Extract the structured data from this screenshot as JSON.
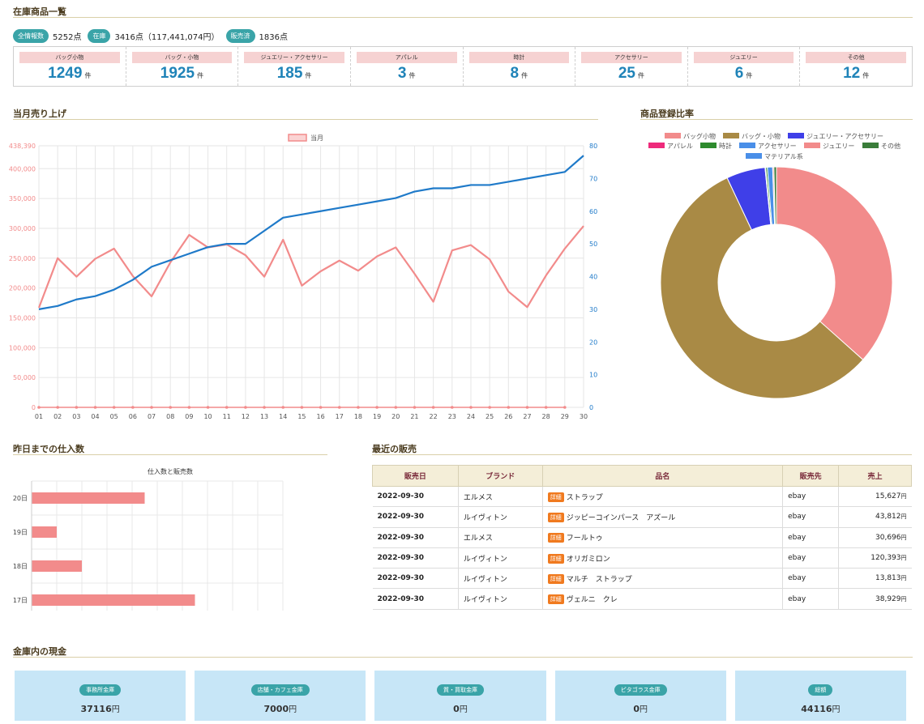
{
  "sections": {
    "inventory": "在庫商品一覧",
    "monthly_sales": "当月売り上げ",
    "registration_ratio": "商品登録比率",
    "purchases": "昨日までの仕入数",
    "recent_sales": "最近の販売",
    "cash": "金庫内の現金"
  },
  "summary": {
    "total_label": "全情報数",
    "total_value": "5252点",
    "stock_label": "在庫",
    "stock_value": "3416点（117,441,074円）",
    "sold_label": "販売済",
    "sold_value": "1836点"
  },
  "categories": [
    {
      "label": "バッグ小物",
      "count": "1249",
      "unit": "件"
    },
    {
      "label": "バッグ・小物",
      "count": "1925",
      "unit": "件"
    },
    {
      "label": "ジュエリー・アクセサリー",
      "count": "185",
      "unit": "件"
    },
    {
      "label": "アパレル",
      "count": "3",
      "unit": "件"
    },
    {
      "label": "時計",
      "count": "8",
      "unit": "件"
    },
    {
      "label": "アクセサリー",
      "count": "25",
      "unit": "件"
    },
    {
      "label": "ジュエリー",
      "count": "6",
      "unit": "件"
    },
    {
      "label": "その他",
      "count": "12",
      "unit": "件"
    }
  ],
  "colors": {
    "accent": "#3aa4a8",
    "sales_line": "#f28b8b",
    "count_line": "#1f7ac9",
    "title_text": "#4a3b1e"
  },
  "chart_data": [
    {
      "type": "line",
      "legend": "当月",
      "x": [
        "01",
        "02",
        "03",
        "04",
        "05",
        "06",
        "07",
        "08",
        "09",
        "10",
        "11",
        "12",
        "13",
        "14",
        "15",
        "16",
        "17",
        "18",
        "19",
        "20",
        "21",
        "22",
        "23",
        "24",
        "25",
        "26",
        "27",
        "28",
        "29",
        "30"
      ],
      "y_left_ticks": [
        "0",
        "50,000",
        "100,000",
        "150,000",
        "200,000",
        "250,000",
        "300,000",
        "350,000",
        "400,000",
        "438,390"
      ],
      "y_left_max": 438390,
      "y_right_ticks": [
        "0",
        "10",
        "20",
        "30",
        "40",
        "50",
        "60",
        "70",
        "80"
      ],
      "y_right_max": 80,
      "series": [
        {
          "name": "当月",
          "axis": "left",
          "values": [
            167000,
            250000,
            219000,
            249000,
            266000,
            220000,
            186000,
            243000,
            289000,
            268000,
            273000,
            255000,
            219000,
            281000,
            204000,
            228000,
            246000,
            229000,
            253000,
            268000,
            224000,
            177000,
            263000,
            272000,
            248000,
            194000,
            168000,
            221000,
            266000,
            304000
          ]
        },
        {
          "axis": "right",
          "values": [
            30,
            31,
            33,
            34,
            36,
            39,
            43,
            45,
            47,
            49,
            50,
            50,
            54,
            58,
            59,
            60,
            61,
            62,
            63,
            64,
            66,
            67,
            67,
            68,
            68,
            69,
            70,
            71,
            72,
            77
          ]
        }
      ],
      "zero_series_axis": "left"
    },
    {
      "type": "pie",
      "legend_position": "top",
      "labels": [
        "バッグ小物",
        "バッグ・小物",
        "ジュエリー・アクセサリー",
        "アパレル",
        "時計",
        "アクセサリー",
        "ジュエリー",
        "その他",
        "マテリアル系"
      ],
      "values": [
        1249,
        1925,
        185,
        3,
        8,
        25,
        6,
        12,
        0
      ],
      "colors": [
        "#f28b8b",
        "#a98a45",
        "#3f3fe8",
        "#ee2a7b",
        "#2e8b2e",
        "#4a8fe8",
        "#f28b8b",
        "#3a7d3a",
        "#4a8fe8"
      ]
    },
    {
      "type": "bar",
      "orientation": "horizontal",
      "title": "仕入数と販売数",
      "categories": [
        "20日",
        "19日",
        "18日",
        "17日"
      ],
      "values": [
        9,
        2,
        4,
        13
      ],
      "xlim": [
        0,
        20
      ]
    }
  ],
  "recent_sales": {
    "headers": [
      "販売日",
      "ブランド",
      "品名",
      "販売先",
      "売上"
    ],
    "badge": "詳細",
    "rows": [
      {
        "date": "2022-09-30",
        "brand": "エルメス",
        "item": "ストラップ",
        "dest": "ebay",
        "amount": "15,627",
        "unit": "円"
      },
      {
        "date": "2022-09-30",
        "brand": "ルイヴィトン",
        "item": "ジッピーコインパース　アズール",
        "dest": "ebay",
        "amount": "43,812",
        "unit": "円"
      },
      {
        "date": "2022-09-30",
        "brand": "エルメス",
        "item": "フールトゥ",
        "dest": "ebay",
        "amount": "30,696",
        "unit": "円"
      },
      {
        "date": "2022-09-30",
        "brand": "ルイヴィトン",
        "item": "オリガミロン",
        "dest": "ebay",
        "amount": "120,393",
        "unit": "円"
      },
      {
        "date": "2022-09-30",
        "brand": "ルイヴィトン",
        "item": "マルチ　ストラップ",
        "dest": "ebay",
        "amount": "13,813",
        "unit": "円"
      },
      {
        "date": "2022-09-30",
        "brand": "ルイヴィトン",
        "item": "ヴェルニ　クレ",
        "dest": "ebay",
        "amount": "38,929",
        "unit": "円"
      }
    ]
  },
  "safes": [
    {
      "label": "事務所金庫",
      "value": "37116",
      "unit": "円"
    },
    {
      "label": "店舗・カフェ金庫",
      "value": "7000",
      "unit": "円"
    },
    {
      "label": "質・買取金庫",
      "value": "0",
      "unit": "円"
    },
    {
      "label": "ピタゴラス金庫",
      "value": "0",
      "unit": "円"
    },
    {
      "label": "総額",
      "value": "44116",
      "unit": "円"
    }
  ]
}
